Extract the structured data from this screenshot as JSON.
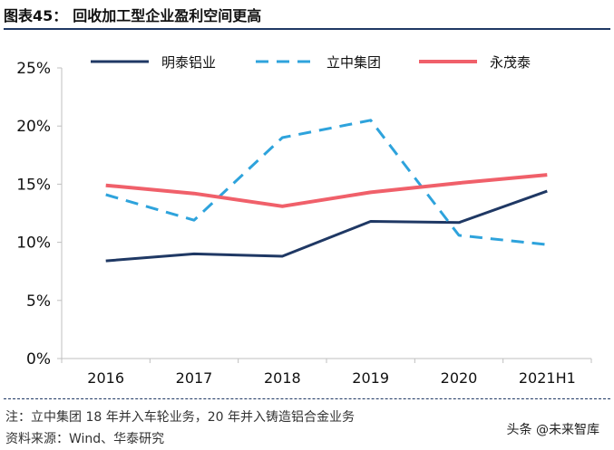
{
  "figure": {
    "label": "图表45：",
    "title": "回收加工型企业盈利空间更高"
  },
  "note": "注：立中集团 18 年并入车轮业务，20 年并入铸造铝合金业务",
  "source": "资料来源：Wind、华泰研究",
  "watermark": "头条 @未来智库",
  "chart_data": {
    "type": "line",
    "title": "回收加工型企业盈利空间更高",
    "categories": [
      "2016",
      "2017",
      "2018",
      "2019",
      "2020",
      "2021H1"
    ],
    "ylim": [
      0,
      25
    ],
    "yticks": [
      0,
      5,
      10,
      15,
      20,
      25
    ],
    "ytick_labels": [
      "0%",
      "5%",
      "10%",
      "15%",
      "20%",
      "25%"
    ],
    "legend_position": "top",
    "series": [
      {
        "name": "明泰铝业",
        "color": "#1f3864",
        "dash": "solid",
        "values": [
          8.4,
          9.0,
          8.8,
          11.8,
          11.7,
          14.4
        ]
      },
      {
        "name": "立中集团",
        "color": "#2ea3dc",
        "dash": "dashed",
        "values": [
          14.1,
          11.9,
          19.0,
          20.5,
          10.6,
          9.8
        ]
      },
      {
        "name": "永茂泰",
        "color": "#f0606a",
        "dash": "solid",
        "values": [
          14.9,
          14.2,
          13.1,
          14.3,
          15.1,
          15.8
        ]
      }
    ]
  }
}
